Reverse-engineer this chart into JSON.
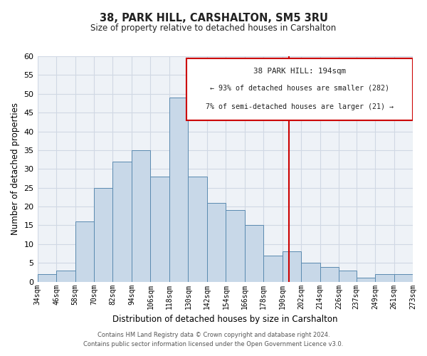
{
  "title": "38, PARK HILL, CARSHALTON, SM5 3RU",
  "subtitle": "Size of property relative to detached houses in Carshalton",
  "xlabel": "Distribution of detached houses by size in Carshalton",
  "ylabel": "Number of detached properties",
  "bin_labels": [
    "34sqm",
    "46sqm",
    "58sqm",
    "70sqm",
    "82sqm",
    "94sqm",
    "106sqm",
    "118sqm",
    "130sqm",
    "142sqm",
    "154sqm",
    "166sqm",
    "178sqm",
    "190sqm",
    "202sqm",
    "214sqm",
    "226sqm",
    "237sqm",
    "249sqm",
    "261sqm",
    "273sqm"
  ],
  "bin_edges": [
    34,
    46,
    58,
    70,
    82,
    94,
    106,
    118,
    130,
    142,
    154,
    166,
    178,
    190,
    202,
    214,
    226,
    237,
    249,
    261,
    273
  ],
  "bar_heights": [
    2,
    3,
    16,
    25,
    32,
    35,
    28,
    49,
    28,
    21,
    19,
    15,
    7,
    8,
    5,
    4,
    3,
    1,
    2,
    2
  ],
  "bar_color": "#c8d8e8",
  "bar_edge_color": "#5a8ab0",
  "marker_value": 194,
  "marker_color": "#cc0000",
  "ylim": [
    0,
    60
  ],
  "yticks": [
    0,
    5,
    10,
    15,
    20,
    25,
    30,
    35,
    40,
    45,
    50,
    55,
    60
  ],
  "annotation_title": "38 PARK HILL: 194sqm",
  "annotation_line1": "← 93% of detached houses are smaller (282)",
  "annotation_line2": "7% of semi-detached houses are larger (21) →",
  "footer_line1": "Contains HM Land Registry data © Crown copyright and database right 2024.",
  "footer_line2": "Contains public sector information licensed under the Open Government Licence v3.0.",
  "bg_color": "#ffffff",
  "plot_bg_color": "#eef2f7",
  "grid_color": "#d0d8e4"
}
